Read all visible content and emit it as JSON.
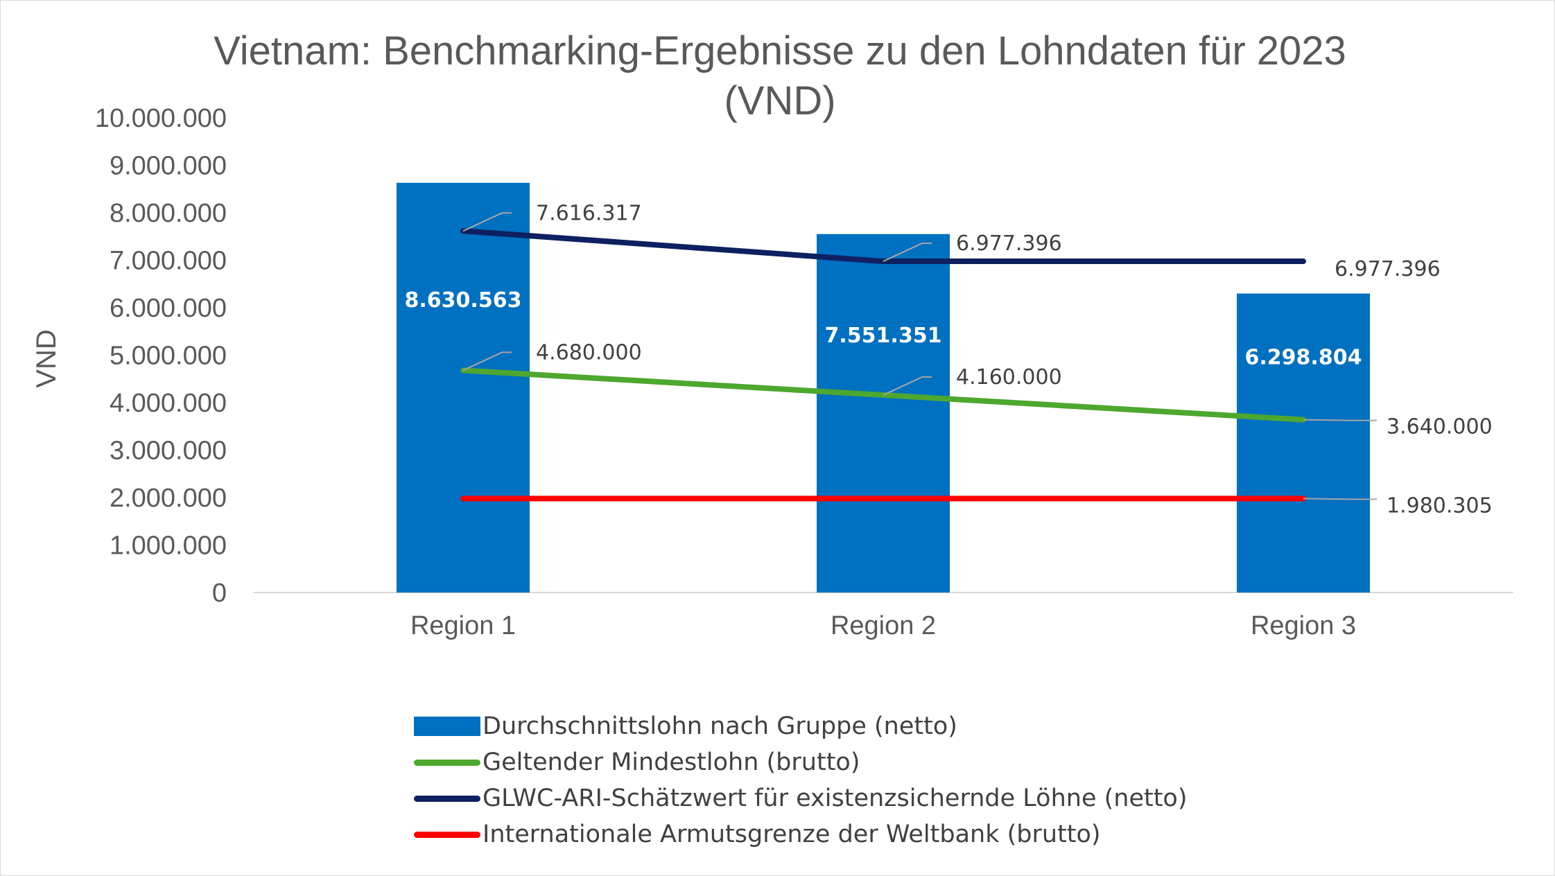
{
  "chart_data": {
    "type": "bar",
    "title": "Vietnam: Benchmarking-Ergebnisse zu den Lohndaten für 2023 (VND)",
    "xlabel": "",
    "ylabel": "VND",
    "ylim": [
      0,
      10000000
    ],
    "ytick_step": 1000000,
    "ytick_labels": [
      "0",
      "1.000.000",
      "2.000.000",
      "3.000.000",
      "4.000.000",
      "5.000.000",
      "6.000.000",
      "7.000.000",
      "8.000.000",
      "9.000.000",
      "10.000.000"
    ],
    "grid": false,
    "legend_position": "bottom",
    "categories": [
      "Region 1",
      "Region 2",
      "Region 3"
    ],
    "bars": {
      "name": "Durchschnittslohn nach Gruppe (netto)",
      "color": "#0070C0",
      "values": [
        8630563,
        7551351,
        6298804
      ],
      "labels": [
        "8.630.563",
        "7.551.351",
        "6.298.804"
      ]
    },
    "lines": [
      {
        "key": "mindestlohn",
        "name": "Geltender Mindestlohn (brutto)",
        "color": "#4EA72E",
        "values": [
          4680000,
          4160000,
          3640000
        ],
        "labels": [
          "4.680.000",
          "4.160.000",
          "3.640.000"
        ]
      },
      {
        "key": "glwc",
        "name": "GLWC-ARI-Schätzwert für existenzsichernde Löhne (netto)",
        "color": "#0E2060",
        "values": [
          7616317,
          6977396,
          6977396
        ],
        "labels": [
          "7.616.317",
          "6.977.396",
          "6.977.396"
        ]
      },
      {
        "key": "armut",
        "name": "Internationale Armutsgrenze der Weltbank (brutto)",
        "color": "#FF0000",
        "values": [
          1980305,
          1980305,
          1980305
        ],
        "labels": [
          "",
          "",
          "1.980.305"
        ]
      }
    ]
  },
  "legend": {
    "items": [
      {
        "label": "Durchschnittslohn nach Gruppe (netto)",
        "kind": "bar",
        "color": "#0070C0"
      },
      {
        "label": "Geltender Mindestlohn (brutto)",
        "kind": "line",
        "color": "#4EA72E"
      },
      {
        "label": "GLWC-ARI-Schätzwert für existenzsichernde Löhne (netto)",
        "kind": "line",
        "color": "#0E2060"
      },
      {
        "label": "Internationale Armutsgrenze der Weltbank (brutto)",
        "kind": "line",
        "color": "#FF0000"
      }
    ]
  }
}
